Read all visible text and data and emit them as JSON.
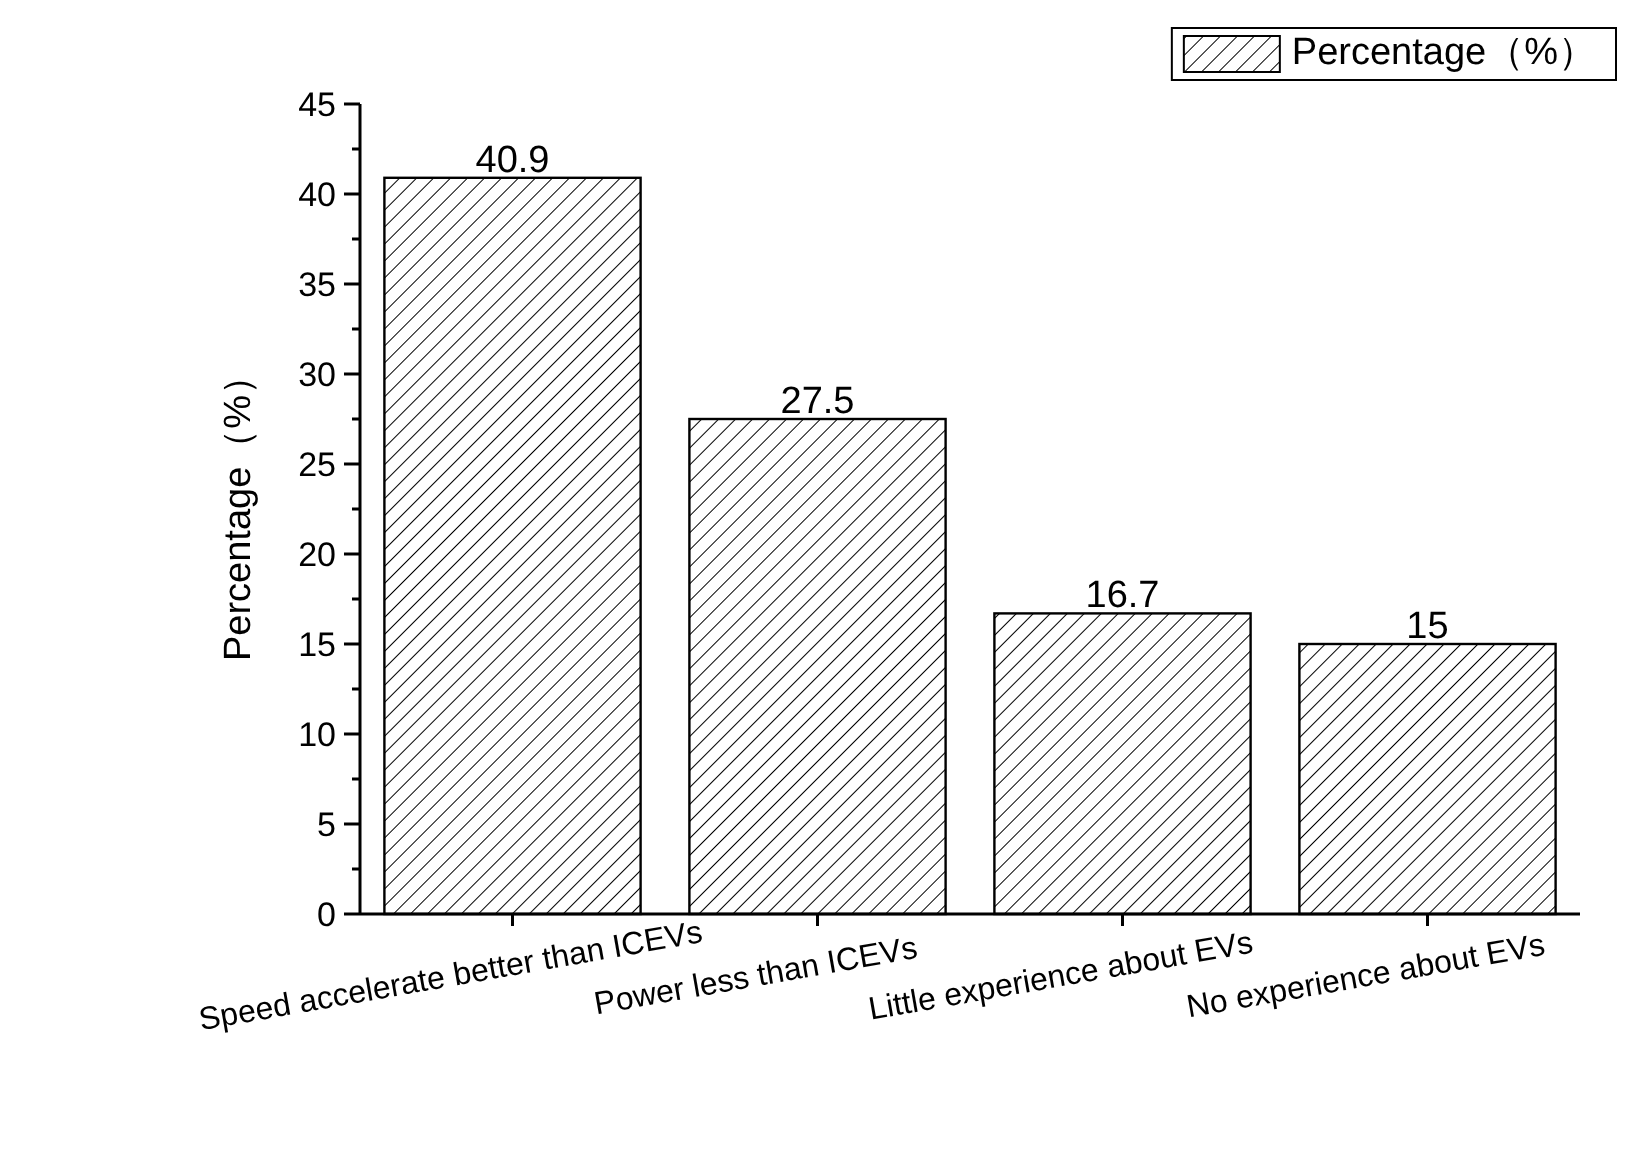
{
  "chart_data": {
    "type": "bar",
    "ylabel": "Percentage（%）",
    "categories": [
      "Speed accelerate better than ICEVs",
      "Power less than ICEVs",
      "Little experience about EVs",
      "No experience about EVs"
    ],
    "series": [
      {
        "name": "Percentage（%）",
        "color": "#000000",
        "values": [
          40.9,
          27.5,
          16.7,
          15
        ]
      }
    ],
    "ylim": [
      0,
      45
    ],
    "yticks": [
      0,
      {
        "value": 2.5,
        "label": null
      },
      5,
      {
        "value": 7.5,
        "label": null
      },
      10,
      {
        "value": 12.5,
        "label": null
      },
      15,
      {
        "value": 17.5,
        "label": null
      },
      20,
      {
        "value": 22.5,
        "label": null
      },
      25,
      {
        "value": 27.5,
        "label": null
      },
      30,
      {
        "value": 32.5,
        "label": null
      },
      35,
      {
        "value": 37.5,
        "label": null
      },
      40,
      {
        "value": 42.5,
        "label": null
      },
      45
    ],
    "data_labels": true,
    "legend": "top right"
  }
}
